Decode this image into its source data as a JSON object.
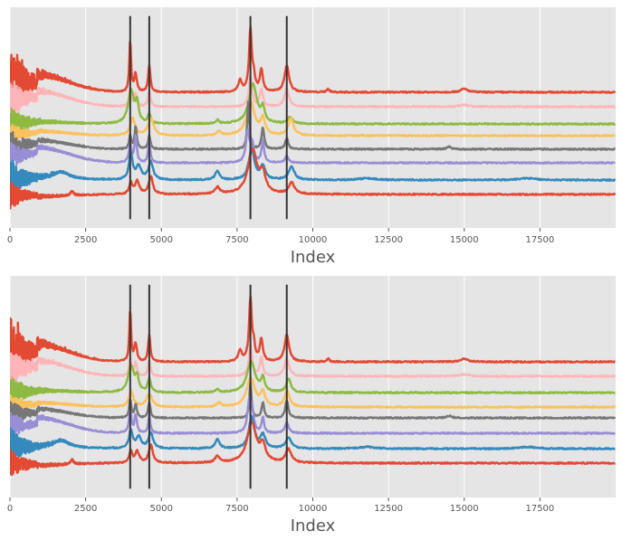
{
  "chart_data": [
    {
      "type": "line",
      "title": "",
      "xlabel": "Index",
      "ylabel": "",
      "xlim": [
        0,
        20000
      ],
      "ylim": [
        0,
        100
      ],
      "xticks": [
        0,
        2500,
        5000,
        7500,
        10000,
        12500,
        15000,
        17500
      ],
      "grid": true,
      "legend": "none",
      "vlines": {
        "x": [
          3970,
          4600,
          7940,
          9140
        ],
        "ymin": 4,
        "ymax": 96,
        "color": "#333333"
      },
      "series": [
        {
          "color": "#E24A33",
          "baseline": 61.5,
          "rise": 8,
          "noise": 22,
          "peaks": [
            [
              3970,
              23,
              35
            ],
            [
              4150,
              8,
              50
            ],
            [
              4600,
              12,
              45
            ],
            [
              7600,
              5,
              70
            ],
            [
              7940,
              28,
              55
            ],
            [
              8050,
              6,
              50
            ],
            [
              8300,
              10,
              60
            ],
            [
              9140,
              12,
              90
            ],
            [
              10500,
              1.5,
              50
            ],
            [
              15000,
              1.5,
              140
            ]
          ]
        },
        {
          "color": "#FFB5B8",
          "baseline": 54.9,
          "rise": 7,
          "noise": 12,
          "peaks": [
            [
              3970,
              8,
              40
            ],
            [
              4150,
              6,
              50
            ],
            [
              4600,
              7,
              50
            ],
            [
              7940,
              14,
              60
            ],
            [
              8300,
              8,
              60
            ],
            [
              9140,
              8,
              90
            ],
            [
              15000,
              1,
              150
            ]
          ]
        },
        {
          "color": "#8EBA42",
          "baseline": 47.1,
          "rise": 1,
          "noise": 10,
          "peaks": [
            [
              4000,
              15,
              120
            ],
            [
              4200,
              8,
              60
            ],
            [
              4600,
              4,
              60
            ],
            [
              8020,
              18,
              160
            ],
            [
              8350,
              6,
              70
            ],
            [
              9250,
              3,
              90
            ],
            [
              6850,
              1.5,
              60
            ]
          ]
        },
        {
          "color": "#FBC15E",
          "baseline": 41.8,
          "rise": 2,
          "noise": 6,
          "peaks": [
            [
              4050,
              8,
              90
            ],
            [
              4650,
              8,
              110
            ],
            [
              6900,
              2,
              80
            ],
            [
              7950,
              15,
              160
            ],
            [
              8350,
              7,
              90
            ],
            [
              9280,
              8,
              100
            ]
          ]
        },
        {
          "color": "#777777",
          "baseline": 35.7,
          "rise": 4,
          "noise": 8,
          "peaks": [
            [
              3970,
              6,
              40
            ],
            [
              4150,
              10,
              45
            ],
            [
              4600,
              6,
              45
            ],
            [
              7870,
              22,
              40
            ],
            [
              8350,
              10,
              50
            ],
            [
              9140,
              5,
              60
            ],
            [
              14500,
              1,
              100
            ]
          ]
        },
        {
          "color": "#988ED5",
          "baseline": 29.5,
          "rise": 7,
          "noise": 8,
          "peaks": [
            [
              3970,
              8,
              50
            ],
            [
              4150,
              12,
              45
            ],
            [
              4600,
              10,
              40
            ],
            [
              7850,
              14,
              70
            ],
            [
              8000,
              8,
              60
            ],
            [
              8350,
              10,
              50
            ],
            [
              9140,
              3,
              70
            ]
          ]
        },
        {
          "color": "#348ABD",
          "baseline": 21.7,
          "rise": 1,
          "noise": 12,
          "peaks": [
            [
              1700,
              3,
              300
            ],
            [
              3990,
              12,
              70
            ],
            [
              4250,
              6,
              100
            ],
            [
              4650,
              8,
              90
            ],
            [
              6850,
              4,
              90
            ],
            [
              7980,
              14,
              110
            ],
            [
              8350,
              6,
              100
            ],
            [
              9300,
              6,
              110
            ],
            [
              11800,
              0.8,
              300
            ],
            [
              17100,
              0.8,
              300
            ]
          ]
        },
        {
          "color": "#E24A33",
          "baseline": 15.2,
          "rise": -1,
          "noise": 8,
          "peaks": [
            [
              2050,
              2,
              60
            ],
            [
              3990,
              5,
              60
            ],
            [
              4200,
              6,
              80
            ],
            [
              4650,
              8,
              80
            ],
            [
              6850,
              3,
              90
            ],
            [
              8010,
              20,
              180
            ],
            [
              8350,
              8,
              110
            ],
            [
              9300,
              5,
              110
            ]
          ]
        }
      ]
    },
    {
      "type": "line",
      "title": "",
      "xlabel": "Index",
      "ylabel": "",
      "xlim": [
        0,
        20000
      ],
      "ylim": [
        0,
        100
      ],
      "xticks": [
        0,
        2500,
        5000,
        7500,
        10000,
        12500,
        15000,
        17500
      ],
      "grid": true,
      "legend": "none",
      "vlines": {
        "x": [
          3970,
          4600,
          7940,
          9140
        ],
        "ymin": 4,
        "ymax": 96,
        "color": "#333333"
      },
      "series": [
        {
          "color": "#E24A33",
          "baseline": 61.2,
          "rise": 8,
          "noise": 22,
          "peaks": [
            [
              3970,
              23,
              35
            ],
            [
              4150,
              8,
              50
            ],
            [
              4600,
              12,
              45
            ],
            [
              7600,
              5,
              70
            ],
            [
              7940,
              28,
              55
            ],
            [
              8050,
              6,
              50
            ],
            [
              8300,
              10,
              60
            ],
            [
              9140,
              12,
              90
            ],
            [
              10500,
              1.5,
              50
            ],
            [
              15000,
              1.5,
              140
            ]
          ]
        },
        {
          "color": "#FFB5B8",
          "baseline": 54.7,
          "rise": 7,
          "noise": 12,
          "peaks": [
            [
              3970,
              8,
              40
            ],
            [
              4150,
              6,
              50
            ],
            [
              4600,
              7,
              50
            ],
            [
              7940,
              14,
              60
            ],
            [
              8300,
              8,
              60
            ],
            [
              9140,
              8,
              90
            ],
            [
              15000,
              1,
              150
            ]
          ]
        },
        {
          "color": "#8EBA42",
          "baseline": 47.3,
          "rise": 1,
          "noise": 10,
          "peaks": [
            [
              4000,
              12,
              120
            ],
            [
              4200,
              6,
              60
            ],
            [
              4600,
              6,
              60
            ],
            [
              7960,
              14,
              160
            ],
            [
              8350,
              6,
              70
            ],
            [
              9200,
              6,
              90
            ],
            [
              6850,
              1.5,
              60
            ]
          ]
        },
        {
          "color": "#FBC15E",
          "baseline": 40.8,
          "rise": 2,
          "noise": 6,
          "peaks": [
            [
              4000,
              7,
              90
            ],
            [
              4600,
              6,
              110
            ],
            [
              6900,
              2,
              80
            ],
            [
              7950,
              13,
              160
            ],
            [
              8350,
              6,
              90
            ],
            [
              9150,
              7,
              100
            ]
          ]
        },
        {
          "color": "#777777",
          "baseline": 35.9,
          "rise": 4,
          "noise": 8,
          "peaks": [
            [
              3970,
              8,
              40
            ],
            [
              4150,
              6,
              45
            ],
            [
              4600,
              7,
              45
            ],
            [
              7940,
              16,
              40
            ],
            [
              8350,
              7,
              50
            ],
            [
              9140,
              8,
              60
            ],
            [
              14500,
              1,
              100
            ]
          ]
        },
        {
          "color": "#988ED5",
          "baseline": 29.0,
          "rise": 7,
          "noise": 8,
          "peaks": [
            [
              3970,
              10,
              50
            ],
            [
              4150,
              8,
              45
            ],
            [
              4600,
              8,
              40
            ],
            [
              7900,
              14,
              70
            ],
            [
              8000,
              8,
              60
            ],
            [
              8350,
              7,
              50
            ],
            [
              9140,
              5,
              70
            ]
          ]
        },
        {
          "color": "#348ABD",
          "baseline": 22.0,
          "rise": 1,
          "noise": 12,
          "peaks": [
            [
              1700,
              3,
              300
            ],
            [
              3990,
              8,
              70
            ],
            [
              4250,
              5,
              100
            ],
            [
              4650,
              7,
              90
            ],
            [
              6850,
              4,
              90
            ],
            [
              7980,
              14,
              110
            ],
            [
              8350,
              6,
              100
            ],
            [
              9200,
              5,
              110
            ],
            [
              11800,
              0.8,
              300
            ],
            [
              17100,
              0.8,
              300
            ]
          ]
        },
        {
          "color": "#E24A33",
          "baseline": 15.5,
          "rise": -1,
          "noise": 8,
          "peaks": [
            [
              2050,
              2,
              60
            ],
            [
              3990,
              5,
              60
            ],
            [
              4200,
              5,
              80
            ],
            [
              4650,
              8,
              80
            ],
            [
              6850,
              3,
              90
            ],
            [
              7980,
              18,
              180
            ],
            [
              8350,
              7,
              110
            ],
            [
              9200,
              6,
              110
            ]
          ]
        }
      ]
    }
  ]
}
